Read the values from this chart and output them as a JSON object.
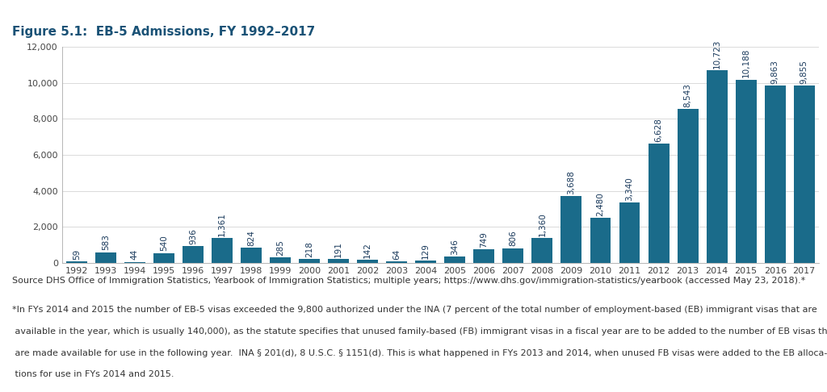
{
  "title": "Figure 5.1:  EB-5 Admissions, FY 1992–2017",
  "years": [
    1992,
    1993,
    1994,
    1995,
    1996,
    1997,
    1998,
    1999,
    2000,
    2001,
    2002,
    2003,
    2004,
    2005,
    2006,
    2007,
    2008,
    2009,
    2010,
    2011,
    2012,
    2013,
    2014,
    2015,
    2016,
    2017
  ],
  "values": [
    59,
    583,
    44,
    540,
    936,
    1361,
    824,
    285,
    218,
    191,
    142,
    64,
    129,
    346,
    749,
    806,
    1360,
    3688,
    2480,
    3340,
    6628,
    8543,
    10723,
    10188,
    9863,
    9855
  ],
  "bar_color": "#1a6b8a",
  "ylim": [
    0,
    12000
  ],
  "yticks": [
    0,
    2000,
    4000,
    6000,
    8000,
    10000,
    12000
  ],
  "background_color": "#ffffff",
  "title_color": "#1a5276",
  "label_color": "#1a3a5c",
  "source_text": "Source DHS Office of Immigration Statistics, Yearbook of Immigration Statistics; multiple years; https://www.dhs.gov/immigration-statistics/yearbook (accessed May 23, 2018).*",
  "footnote_line1": "*In FYs 2014 and 2015 the number of EB-5 visas exceeded the 9,800 authorized under the INA (7 percent of the total number of employment-based (EB) immigrant visas that are",
  "footnote_line2": " available in the year, which is usually 140,000), as the statute specifies that unused family-based (FB) immigrant visas in a fiscal year are to be added to the number of EB visas that",
  "footnote_line3": " are made available for use in the following year.  INA § 201(d), 8 U.S.C. § 1151(d). This is what happened in FYs 2013 and 2014, when unused FB visas were added to the EB alloca-",
  "footnote_line4": " tions for use in FYs 2014 and 2015.",
  "title_fontsize": 11,
  "tick_fontsize": 8,
  "bar_label_fontsize": 7.5,
  "source_fontsize": 8,
  "footnote_fontsize": 8
}
